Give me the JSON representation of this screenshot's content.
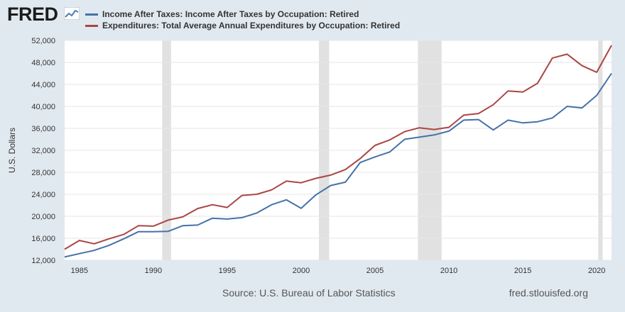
{
  "header": {
    "logo_text": "FRED",
    "logo_icon": "line-chart-icon"
  },
  "legend": [
    {
      "label": "Income After Taxes: Income After Taxes by Occupation: Retired",
      "color": "#4572a7"
    },
    {
      "label": "Expenditures: Total Average Annual Expenditures by Occupation: Retired",
      "color": "#aa4643"
    }
  ],
  "footer": {
    "source": "Source: U.S. Bureau of Labor Statistics",
    "site": "fred.stlouisfed.org"
  },
  "chart_data": {
    "type": "line",
    "ylabel": "U.S. Dollars",
    "xlim": [
      1984,
      2021
    ],
    "ylim": [
      12000,
      52000
    ],
    "yticks": [
      12000,
      16000,
      20000,
      24000,
      28000,
      32000,
      36000,
      40000,
      44000,
      48000,
      52000
    ],
    "ytick_labels": [
      "12,000",
      "16,000",
      "20,000",
      "24,000",
      "28,000",
      "32,000",
      "36,000",
      "40,000",
      "44,000",
      "48,000",
      "52,000"
    ],
    "xticks": [
      1985,
      1990,
      1995,
      2000,
      2005,
      2010,
      2015,
      2020
    ],
    "xtick_labels": [
      "1985",
      "1990",
      "1995",
      "2000",
      "2005",
      "2010",
      "2015",
      "2020"
    ],
    "recessions": [
      [
        1990.6,
        1991.2
      ],
      [
        2001.2,
        2001.9
      ],
      [
        2007.9,
        2009.5
      ],
      [
        2020.1,
        2020.4
      ]
    ],
    "grid": "horizontal",
    "x": [
      1984,
      1985,
      1986,
      1987,
      1988,
      1989,
      1990,
      1991,
      1992,
      1993,
      1994,
      1995,
      1996,
      1997,
      1998,
      1999,
      2000,
      2001,
      2002,
      2003,
      2004,
      2005,
      2006,
      2007,
      2008,
      2009,
      2010,
      2011,
      2012,
      2013,
      2014,
      2015,
      2016,
      2017,
      2018,
      2019,
      2020,
      2021
    ],
    "series": [
      {
        "name": "Income After Taxes: Income After Taxes by Occupation: Retired",
        "color": "#4572a7",
        "values": [
          12600,
          13200,
          13800,
          14700,
          15900,
          17200,
          17200,
          17250,
          18300,
          18400,
          19650,
          19500,
          19750,
          20600,
          22100,
          23000,
          21450,
          23900,
          25600,
          26200,
          29800,
          30800,
          31700,
          34000,
          34400,
          34800,
          35500,
          37500,
          37600,
          35700,
          37500,
          37000,
          37200,
          37900,
          40000,
          39700,
          42000,
          46000
        ]
      },
      {
        "name": "Expenditures: Total Average Annual Expenditures by Occupation: Retired",
        "color": "#aa4643",
        "values": [
          14000,
          15600,
          15000,
          15900,
          16700,
          18300,
          18200,
          19300,
          19900,
          21400,
          22100,
          21600,
          23800,
          24000,
          24800,
          26400,
          26100,
          26900,
          27500,
          28500,
          30500,
          32900,
          33900,
          35400,
          36100,
          35800,
          36200,
          38400,
          38700,
          40300,
          42800,
          42600,
          44200,
          48800,
          49500,
          47400,
          46200,
          51100
        ]
      }
    ]
  }
}
